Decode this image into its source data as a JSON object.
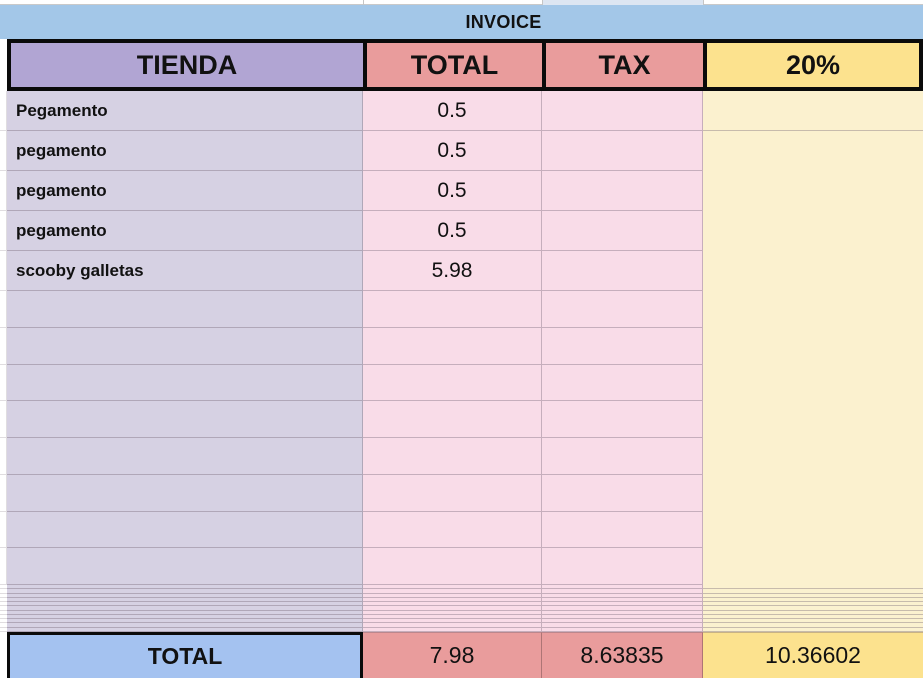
{
  "sheet": {
    "title": "INVOICE",
    "columns": {
      "store": "TIENDA",
      "total": "TOTAL",
      "tax": "TAX",
      "pct": "20%"
    },
    "items": [
      {
        "name": "Pegamento",
        "total": "0.5",
        "tax": ""
      },
      {
        "name": "pegamento",
        "total": "0.5",
        "tax": ""
      },
      {
        "name": "pegamento",
        "total": "0.5",
        "tax": ""
      },
      {
        "name": "pegamento",
        "total": "0.5",
        "tax": ""
      },
      {
        "name": "scooby galletas",
        "total": "5.98",
        "tax": ""
      }
    ],
    "empty_row_count": 8,
    "hidden_row_count": 11,
    "footer": {
      "label": "TOTAL",
      "total": "7.98",
      "tax": "8.63835",
      "pct": "10.36602"
    },
    "colors": {
      "title_bar_blue": "#a3c7e8",
      "header_purple": "#b1a5d3",
      "header_salmon": "#e99c9c",
      "header_yellow": "#fce28e",
      "body_lavender": "#d6d1e3",
      "body_pink": "#f9dce8",
      "body_pale_yellow": "#fbf1cf",
      "footer_blue": "#a4c2f0",
      "partial_row_tint": "#dde6f2"
    }
  }
}
